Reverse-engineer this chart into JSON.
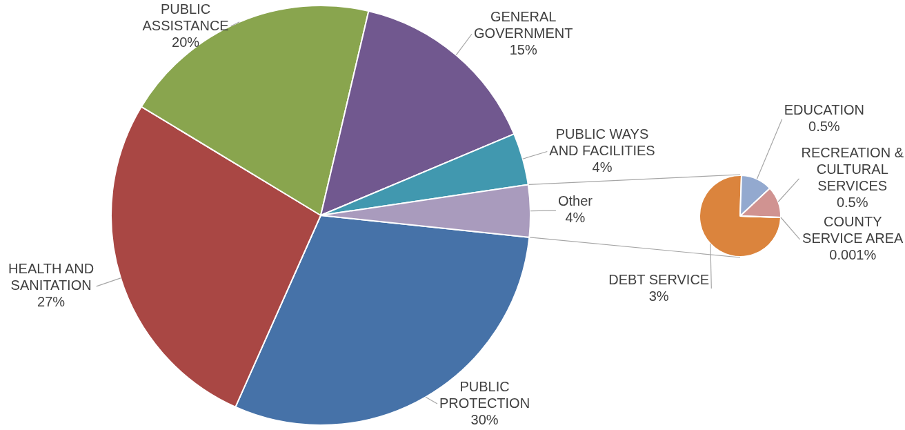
{
  "chart_data": [
    {
      "type": "pie",
      "categories": [
        "PUBLIC PROTECTION",
        "HEALTH AND SANITATION",
        "PUBLIC ASSISTANCE",
        "GENERAL GOVERNMENT",
        "PUBLIC WAYS AND FACILITIES",
        "Other"
      ],
      "values": [
        30,
        27,
        20,
        15,
        4,
        4
      ],
      "colors": [
        "#4672a8",
        "#a94744",
        "#89a54e",
        "#71588f",
        "#4198af",
        "#a99bbd"
      ],
      "value_labels": [
        "30%",
        "27%",
        "20%",
        "15%",
        "4%",
        "4%"
      ]
    },
    {
      "type": "pie",
      "categories": [
        "DEBT SERVICE",
        "EDUCATION",
        "RECREATION & CULTURAL SERVICES",
        "COUNTY SERVICE AREA"
      ],
      "values": [
        3,
        0.5,
        0.5,
        0.001
      ],
      "colors": [
        "#db843d",
        "#93a9cf",
        "#d09391",
        "#b9cd96"
      ],
      "value_labels": [
        "3%",
        "0.5%",
        "0.5%",
        "0.001%"
      ]
    }
  ]
}
